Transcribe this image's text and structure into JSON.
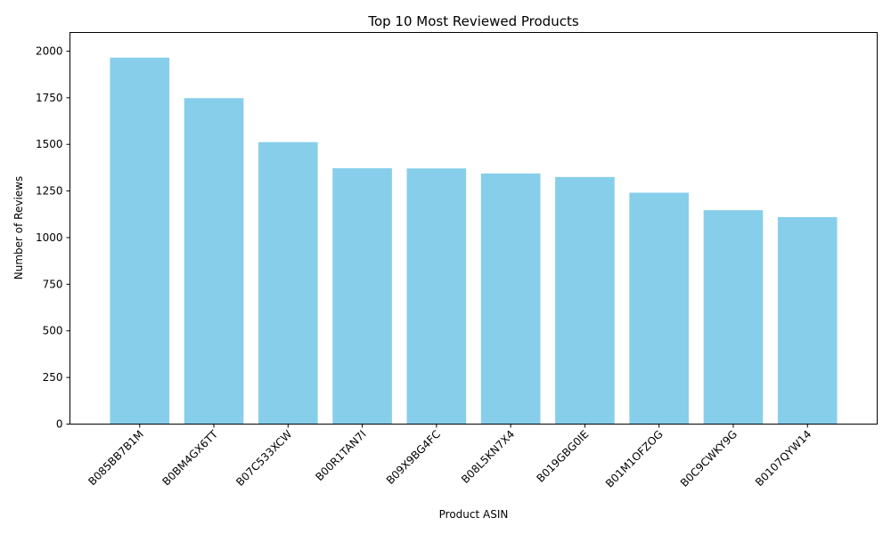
{
  "chart_data": {
    "type": "bar",
    "title": "Top 10 Most Reviewed Products",
    "xlabel": "Product ASIN",
    "ylabel": "Number of Reviews",
    "categories": [
      "B085BB7B1M",
      "B0BM4GX6TT",
      "B07C533XCW",
      "B00R1TAN7I",
      "B09X9BG4FC",
      "B08L5KN7X4",
      "B019GBG0IE",
      "B01M1OFZOG",
      "B0C9CWKY9G",
      "B0107QYW14"
    ],
    "values": [
      1965,
      1748,
      1512,
      1372,
      1371,
      1344,
      1325,
      1241,
      1147,
      1110
    ],
    "ylim": [
      0,
      2100
    ],
    "yticks": [
      0,
      250,
      500,
      750,
      1000,
      1250,
      1500,
      1750,
      2000
    ],
    "bar_color": "#87CEEB",
    "grid": false,
    "legend": "none"
  }
}
